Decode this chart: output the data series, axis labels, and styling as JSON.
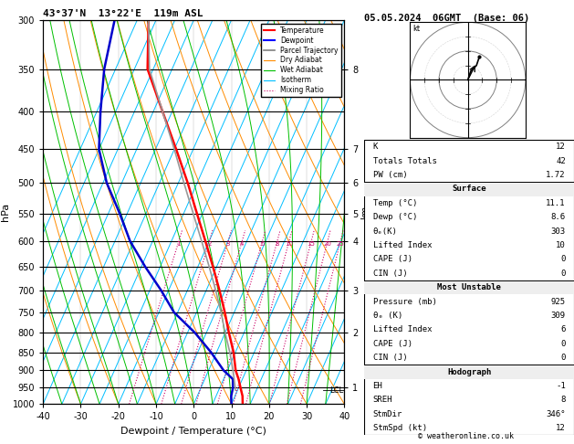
{
  "title_left": "43°37'N  13°22'E  119m ASL",
  "title_right": "05.05.2024  06GMT  (Base: 06)",
  "xlabel": "Dewpoint / Temperature (°C)",
  "ylabel_left": "hPa",
  "pressure_ticks_major": [
    300,
    350,
    400,
    450,
    500,
    550,
    600,
    650,
    700,
    750,
    800,
    850,
    900,
    950,
    1000
  ],
  "temp_range": [
    -40,
    40
  ],
  "bg_color": "#ffffff",
  "isotherm_color": "#00bfff",
  "dry_adiabat_color": "#ff8c00",
  "wet_adiabat_color": "#00c000",
  "mixing_ratio_color": "#cc0066",
  "temp_profile_color": "#ff0000",
  "dewp_profile_color": "#0000cc",
  "parcel_trajectory_color": "#999999",
  "km_ticks": {
    "1": 950,
    "2": 800,
    "3": 700,
    "4": 600,
    "5": 550,
    "6": 500,
    "7": 450,
    "8": 350
  },
  "mixing_ratio_labels": [
    "1",
    "2",
    "3",
    "4",
    "6",
    "8",
    "10",
    "15",
    "20",
    "25"
  ],
  "mixing_ratio_values": [
    1,
    2,
    3,
    4,
    6,
    8,
    10,
    15,
    20,
    25
  ],
  "lcl_pressure": 958,
  "table_data": {
    "K": "12",
    "Totals Totals": "42",
    "PW (cm)": "1.72",
    "Surface": {
      "Temp (°C)": "11.1",
      "Dewp (°C)": "8.6",
      "θe(K)": "303",
      "Lifted Index": "10",
      "CAPE (J)": "0",
      "CIN (J)": "0"
    },
    "Most Unstable": {
      "Pressure (mb)": "925",
      "θe (K)": "309",
      "Lifted Index": "6",
      "CAPE (J)": "0",
      "CIN (J)": "0"
    },
    "Hodograph": {
      "EH": "-1",
      "SREH": "8",
      "StmDir": "346°",
      "StmSpd (kt)": "12"
    }
  },
  "temp_data": {
    "pressure": [
      1000,
      975,
      950,
      925,
      900,
      850,
      800,
      750,
      700,
      650,
      600,
      550,
      500,
      450,
      400,
      350,
      300
    ],
    "temp": [
      13.0,
      12.0,
      10.5,
      9.0,
      7.2,
      4.5,
      1.0,
      -2.5,
      -6.5,
      -11.0,
      -16.0,
      -21.5,
      -27.5,
      -34.5,
      -42.5,
      -51.5,
      -57.0
    ]
  },
  "dewp_data": {
    "pressure": [
      1000,
      975,
      950,
      925,
      900,
      850,
      800,
      750,
      700,
      650,
      600,
      550,
      500,
      450,
      400,
      350,
      300
    ],
    "dewp": [
      10.0,
      9.0,
      8.5,
      7.5,
      4.0,
      -1.5,
      -8.0,
      -16.0,
      -22.0,
      -29.0,
      -36.0,
      -42.0,
      -49.0,
      -55.0,
      -59.0,
      -63.0,
      -66.0
    ]
  },
  "parcel_data": {
    "pressure": [
      958,
      900,
      850,
      800,
      750,
      700,
      650,
      600,
      550,
      500,
      450,
      400,
      350,
      300
    ],
    "temp": [
      9.5,
      6.5,
      3.5,
      0.0,
      -3.5,
      -7.5,
      -12.0,
      -17.0,
      -22.5,
      -28.5,
      -35.0,
      -42.5,
      -51.0,
      -57.0
    ]
  },
  "hodo_data": {
    "u": [
      0,
      1,
      3,
      4
    ],
    "v": [
      0,
      3,
      5,
      8
    ],
    "storm_u": 3.0,
    "storm_v": 6.0
  },
  "footer": "© weatheronline.co.uk",
  "skew_factor": 45.0
}
